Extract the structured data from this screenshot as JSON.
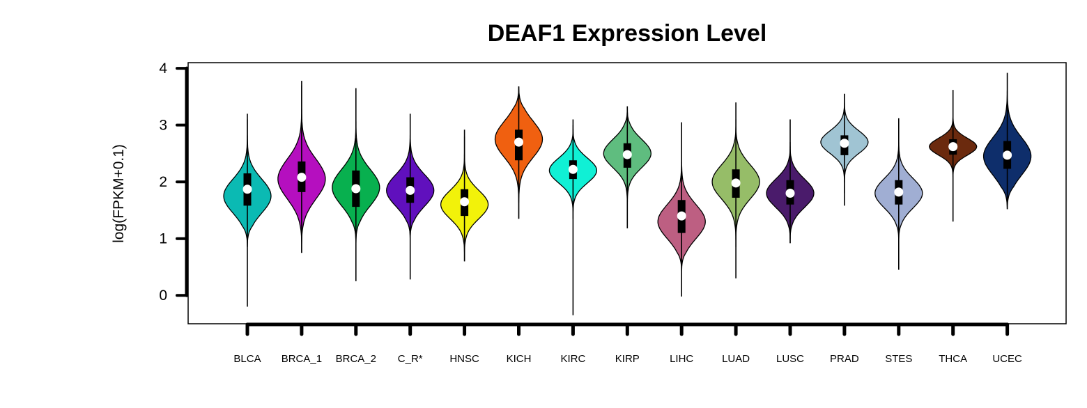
{
  "chart_data": {
    "type": "violin",
    "title": "DEAF1 Expression Level",
    "ylabel": "log(FPKM+0.1)",
    "xlabel": "",
    "ylim": [
      -0.5,
      4.1
    ],
    "yticks": [
      0,
      1,
      2,
      3,
      4
    ],
    "grid": false,
    "categories": [
      "BLCA",
      "BRCA_1",
      "BRCA_2",
      "C_R*",
      "HNSC",
      "KICH",
      "KIRC",
      "KIRP",
      "LIHC",
      "LUAD",
      "LUSC",
      "PRAD",
      "STES",
      "THCA",
      "UCEC"
    ],
    "series": [
      {
        "category": "BLCA",
        "color": "#0bbab3",
        "min": -0.2,
        "q1": 1.58,
        "median": 1.87,
        "q3": 2.15,
        "max": 3.2,
        "vmin": 0.85,
        "vmax": 3.1,
        "mode": 1.75,
        "sd": 0.3
      },
      {
        "category": "BRCA_1",
        "color": "#b50fbf",
        "min": 0.75,
        "q1": 1.82,
        "median": 2.08,
        "q3": 2.36,
        "max": 3.78,
        "vmin": 0.75,
        "vmax": 3.7,
        "mode": 2.05,
        "sd": 0.35
      },
      {
        "category": "BRCA_2",
        "color": "#08b04f",
        "min": 0.25,
        "q1": 1.56,
        "median": 1.88,
        "q3": 2.2,
        "max": 3.65,
        "vmin": 0.85,
        "vmax": 3.55,
        "mode": 1.9,
        "sd": 0.32
      },
      {
        "category": "C_R*",
        "color": "#6010bd",
        "min": 0.28,
        "q1": 1.63,
        "median": 1.85,
        "q3": 2.08,
        "max": 3.2,
        "vmin": 0.95,
        "vmax": 3.1,
        "mode": 1.85,
        "sd": 0.28
      },
      {
        "category": "HNSC",
        "color": "#f2f20a",
        "min": 0.6,
        "q1": 1.4,
        "median": 1.65,
        "q3": 1.87,
        "max": 2.92,
        "vmin": 0.6,
        "vmax": 2.8,
        "mode": 1.6,
        "sd": 0.25
      },
      {
        "category": "KICH",
        "color": "#f06010",
        "min": 1.35,
        "q1": 2.38,
        "median": 2.7,
        "q3": 2.92,
        "max": 3.68,
        "vmin": 1.35,
        "vmax": 3.68,
        "mode": 2.75,
        "sd": 0.32
      },
      {
        "category": "KIRC",
        "color": "#10f0d5",
        "min": -0.35,
        "q1": 2.05,
        "median": 2.22,
        "q3": 2.38,
        "max": 3.1,
        "vmin": 1.35,
        "vmax": 3.0,
        "mode": 2.2,
        "sd": 0.22
      },
      {
        "category": "KIRP",
        "color": "#5fbd7f",
        "min": 1.18,
        "q1": 2.25,
        "median": 2.48,
        "q3": 2.68,
        "max": 3.33,
        "vmin": 1.5,
        "vmax": 3.33,
        "mode": 2.5,
        "sd": 0.25
      },
      {
        "category": "LIHC",
        "color": "#bd5f82",
        "min": -0.02,
        "q1": 1.1,
        "median": 1.4,
        "q3": 1.68,
        "max": 3.05,
        "vmin": 0.4,
        "vmax": 2.6,
        "mode": 1.3,
        "sd": 0.3
      },
      {
        "category": "LUAD",
        "color": "#96bd68",
        "min": 0.3,
        "q1": 1.72,
        "median": 1.98,
        "q3": 2.22,
        "max": 3.4,
        "vmin": 0.85,
        "vmax": 3.1,
        "mode": 2.0,
        "sd": 0.3
      },
      {
        "category": "LUSC",
        "color": "#4a1b6b",
        "min": 0.92,
        "q1": 1.6,
        "median": 1.8,
        "q3": 2.03,
        "max": 3.1,
        "vmin": 0.92,
        "vmax": 2.7,
        "mode": 1.8,
        "sd": 0.25
      },
      {
        "category": "PRAD",
        "color": "#a0c4d3",
        "min": 1.58,
        "q1": 2.47,
        "median": 2.68,
        "q3": 2.82,
        "max": 3.55,
        "vmin": 1.8,
        "vmax": 3.55,
        "mode": 2.7,
        "sd": 0.2
      },
      {
        "category": "STES",
        "color": "#a0aed3",
        "min": 0.45,
        "q1": 1.6,
        "median": 1.82,
        "q3": 2.03,
        "max": 3.12,
        "vmin": 0.9,
        "vmax": 2.85,
        "mode": 1.8,
        "sd": 0.26
      },
      {
        "category": "THCA",
        "color": "#6b2a0e",
        "min": 1.3,
        "q1": 2.48,
        "median": 2.62,
        "q3": 2.75,
        "max": 3.62,
        "vmin": 1.9,
        "vmax": 3.35,
        "mode": 2.62,
        "sd": 0.15
      },
      {
        "category": "UCEC",
        "color": "#0e2e6b",
        "min": 1.52,
        "q1": 2.23,
        "median": 2.47,
        "q3": 2.72,
        "max": 3.92,
        "vmin": 1.52,
        "vmax": 3.9,
        "mode": 2.45,
        "sd": 0.33
      }
    ]
  }
}
